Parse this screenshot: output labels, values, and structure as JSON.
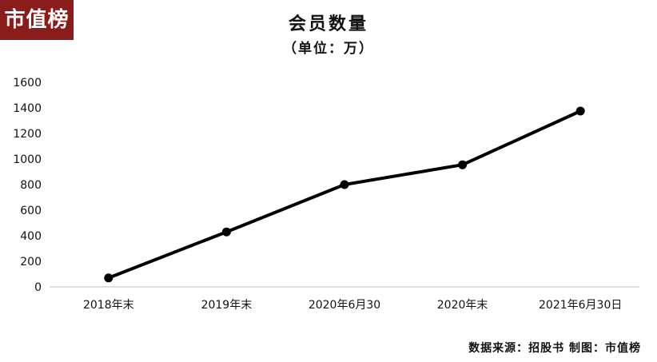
{
  "logo_text": "市值榜",
  "source_text": "数据来源：招股书  制图：市值榜",
  "colors": {
    "logo_bg": "#8b1c1c",
    "line": "#000000",
    "axis": "#bfbfbf"
  },
  "chart_data": {
    "type": "line",
    "title": "会员数量",
    "subtitle": "（单位：万）",
    "categories": [
      "2018年末",
      "2019年末",
      "2020年6月30",
      "2020年末",
      "2021年6月30日"
    ],
    "series": [
      {
        "values": [
          70,
          430,
          800,
          955,
          1375
        ]
      }
    ],
    "ylim": [
      0,
      1600
    ],
    "yticks": [
      0,
      200,
      400,
      600,
      800,
      1000,
      1200,
      1400,
      1600
    ],
    "xlabel": "",
    "ylabel": "",
    "grid": false,
    "legend": "none"
  }
}
